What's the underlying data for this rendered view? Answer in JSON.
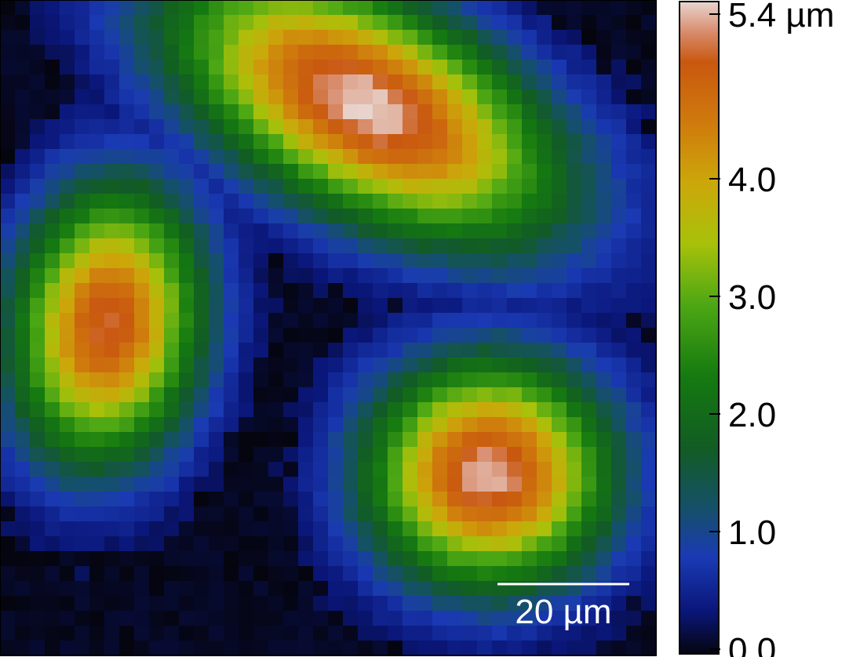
{
  "chart_data": {
    "type": "heatmap",
    "title": "",
    "xlabel": "",
    "ylabel": "",
    "grid": "44x44 pixels",
    "value_range": [
      0.0,
      5.4
    ],
    "colormap": [
      {
        "v": 0.0,
        "c": "#05050f"
      },
      {
        "v": 0.35,
        "c": "#0a1678"
      },
      {
        "v": 0.8,
        "c": "#1a3ab4"
      },
      {
        "v": 1.2,
        "c": "#15506a"
      },
      {
        "v": 1.7,
        "c": "#125c24"
      },
      {
        "v": 2.3,
        "c": "#157a10"
      },
      {
        "v": 2.9,
        "c": "#4ea814"
      },
      {
        "v": 3.4,
        "c": "#a8c10a"
      },
      {
        "v": 3.9,
        "c": "#cca70a"
      },
      {
        "v": 4.4,
        "c": "#cf7a0d"
      },
      {
        "v": 4.9,
        "c": "#c9580f"
      },
      {
        "v": 5.15,
        "c": "#d88c6c"
      },
      {
        "v": 5.4,
        "c": "#e8d6d0"
      }
    ],
    "features": [
      {
        "name": "top cell",
        "peak_um": 5.4,
        "center_um": [
          24.5,
          7.0
        ],
        "semi_axes_um": [
          13.0,
          6.5
        ],
        "rotation_deg": 28
      },
      {
        "name": "left cell",
        "peak_um": 5.0,
        "center_um": [
          7.2,
          21.8
        ],
        "semi_axes_um": [
          5.8,
          8.6
        ],
        "rotation_deg": 8
      },
      {
        "name": "bottom-right cell",
        "peak_um": 5.3,
        "center_um": [
          32.8,
          31.8
        ],
        "semi_axes_um": [
          7.5,
          7.0
        ],
        "rotation_deg": 0
      }
    ],
    "colorbar": {
      "ticks": [
        {
          "value": 0.0,
          "label": "0.0"
        },
        {
          "value": 1.0,
          "label": "1.0"
        },
        {
          "value": 2.0,
          "label": "2.0"
        },
        {
          "value": 3.0,
          "label": "3.0"
        },
        {
          "value": 4.0,
          "label": "4.0"
        },
        {
          "value": 5.4,
          "label": "5.4 µm"
        }
      ]
    },
    "scale_bar": {
      "label": "20 µm",
      "length_um": 20
    }
  }
}
